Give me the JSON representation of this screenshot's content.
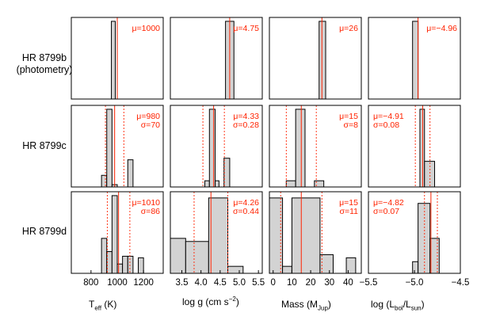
{
  "figure": {
    "row_labels": [
      [
        "HR 8799b",
        "(photometry)"
      ],
      [
        "HR 8799c"
      ],
      [
        "HR 8799d"
      ]
    ],
    "column_labels": [
      {
        "pre": "T",
        "sub": "eff",
        "post": " (K)"
      },
      {
        "pre": "log g (cm s",
        "sup": "−2",
        "post": ")"
      },
      {
        "pre": "Mass (M",
        "sub": "Jup",
        "post": ")"
      },
      {
        "pre": "log (L",
        "sub": "bol",
        "mid": "/L",
        "sub2": "sun",
        "post": ")"
      }
    ]
  },
  "colors": {
    "hist_fill": "#d3d3d3",
    "marker": "#ff2200",
    "axis": "#000000"
  },
  "chart_data": [
    {
      "type": "bar",
      "panel": "HR 8799b Teff",
      "xlim": [
        650,
        1350
      ],
      "ylim": [
        0,
        1.05
      ],
      "bins": [
        {
          "x0": 955,
          "x1": 985,
          "h": 1.0
        }
      ],
      "mean": 1000,
      "sigma_lines": [],
      "stats": [
        "μ=1000"
      ],
      "tick_values": [
        800,
        1000,
        1200
      ],
      "tick_labels": [
        "800",
        "1000",
        "1200"
      ]
    },
    {
      "type": "bar",
      "panel": "HR 8799b log g",
      "xlim": [
        3.2,
        5.6
      ],
      "ylim": [
        0,
        1.05
      ],
      "bins": [
        {
          "x0": 4.64,
          "x1": 4.86,
          "h": 1.0
        }
      ],
      "mean": 4.75,
      "sigma_lines": [],
      "stats": [
        "μ=4.75"
      ],
      "tick_values": [
        3.5,
        4.0,
        4.5,
        5.0,
        5.5
      ],
      "tick_labels": [
        "3.5",
        "4.0",
        "4.5",
        "5.0",
        "5.5"
      ]
    },
    {
      "type": "bar",
      "panel": "HR 8799b Mass",
      "xlim": [
        -2,
        47
      ],
      "ylim": [
        0,
        1.05
      ],
      "bins": [
        {
          "x0": 24.5,
          "x1": 28,
          "h": 1.0
        }
      ],
      "mean": 26,
      "sigma_lines": [],
      "stats": [
        "μ=26"
      ],
      "tick_values": [
        0,
        10,
        20,
        30,
        40
      ],
      "tick_labels": [
        "0",
        "10",
        "20",
        "30",
        "40"
      ]
    },
    {
      "type": "bar",
      "panel": "HR 8799b log L",
      "xlim": [
        -5.5,
        -4.5
      ],
      "ylim": [
        0,
        1.05
      ],
      "bins": [
        {
          "x0": -5.02,
          "x1": -4.96,
          "h": 1.0
        }
      ],
      "mean": -4.96,
      "sigma_lines": [],
      "stats": [
        "μ=−4.96"
      ],
      "tick_values": [
        -5.5,
        -5.0,
        -4.5
      ],
      "tick_labels": [
        "−5.5",
        "−5.0",
        "−4.5"
      ]
    },
    {
      "type": "bar",
      "panel": "HR 8799c Teff",
      "xlim": [
        650,
        1350
      ],
      "ylim": [
        0,
        1.05
      ],
      "bins": [
        {
          "x0": 880,
          "x1": 920,
          "h": 0.15
        },
        {
          "x0": 920,
          "x1": 960,
          "h": 1.0
        },
        {
          "x0": 960,
          "x1": 1000,
          "h": 0.03
        },
        {
          "x0": 1080,
          "x1": 1120,
          "h": 0.35
        }
      ],
      "mean": 980,
      "sigma_lines": [
        910,
        1050
      ],
      "stats": [
        "μ=980",
        "σ=70"
      ],
      "tick_values": [
        800,
        1000,
        1200
      ],
      "tick_labels": [
        "800",
        "1000",
        "1200"
      ]
    },
    {
      "type": "bar",
      "panel": "HR 8799c log g",
      "xlim": [
        3.2,
        5.6
      ],
      "ylim": [
        0,
        1.05
      ],
      "bins": [
        {
          "x0": 4.1,
          "x1": 4.22,
          "h": 0.08
        },
        {
          "x0": 4.22,
          "x1": 4.37,
          "h": 1.0
        },
        {
          "x0": 4.37,
          "x1": 4.47,
          "h": 0.08
        },
        {
          "x0": 4.6,
          "x1": 4.75,
          "h": 0.37
        }
      ],
      "mean": 4.33,
      "sigma_lines": [
        4.05,
        4.61
      ],
      "stats": [
        "μ=4.33",
        "σ=0.28"
      ],
      "tick_values": [
        3.5,
        4.0,
        4.5,
        5.0,
        5.5
      ],
      "tick_labels": [
        "3.5",
        "4.0",
        "4.5",
        "5.0",
        "5.5"
      ]
    },
    {
      "type": "bar",
      "panel": "HR 8799c Mass",
      "xlim": [
        -2,
        47
      ],
      "ylim": [
        0,
        1.05
      ],
      "bins": [
        {
          "x0": 7,
          "x1": 12,
          "h": 0.08
        },
        {
          "x0": 12,
          "x1": 17,
          "h": 1.0
        },
        {
          "x0": 22,
          "x1": 27,
          "h": 0.08
        }
      ],
      "mean": 15,
      "sigma_lines": [
        7,
        23
      ],
      "stats": [
        "μ=15",
        "σ=8"
      ],
      "tick_values": [
        0,
        10,
        20,
        30,
        40
      ],
      "tick_labels": [
        "0",
        "10",
        "20",
        "30",
        "40"
      ]
    },
    {
      "type": "bar",
      "panel": "HR 8799c log L",
      "xlim": [
        -5.5,
        -4.5
      ],
      "ylim": [
        0,
        1.05
      ],
      "bins": [
        {
          "x0": -4.94,
          "x1": -4.89,
          "h": 1.0
        },
        {
          "x0": -4.89,
          "x1": -4.78,
          "h": 0.33
        }
      ],
      "mean": -4.91,
      "sigma_lines": [
        -4.99,
        -4.83
      ],
      "stats": [
        "μ=−4.91",
        "σ=0.08"
      ],
      "tick_values": [
        -5.5,
        -5.0,
        -4.5
      ],
      "tick_labels": [
        "−5.5",
        "−5.0",
        "−4.5"
      ]
    },
    {
      "type": "bar",
      "panel": "HR 8799d Teff",
      "xlim": [
        650,
        1350
      ],
      "ylim": [
        0,
        1.05
      ],
      "bins": [
        {
          "x0": 880,
          "x1": 920,
          "h": 0.45
        },
        {
          "x0": 920,
          "x1": 960,
          "h": 0.28
        },
        {
          "x0": 960,
          "x1": 1000,
          "h": 1.0
        },
        {
          "x0": 1000,
          "x1": 1040,
          "h": 0.12
        },
        {
          "x0": 1040,
          "x1": 1080,
          "h": 0.22
        },
        {
          "x0": 1080,
          "x1": 1120,
          "h": 0.22
        },
        {
          "x0": 1160,
          "x1": 1200,
          "h": 0.2
        }
      ],
      "mean": 1010,
      "sigma_lines": [
        924,
        1096
      ],
      "stats": [
        "μ=1010",
        "σ=86"
      ],
      "tick_values": [
        800,
        1000,
        1200
      ],
      "tick_labels": [
        "800",
        "1000",
        "1200"
      ]
    },
    {
      "type": "bar",
      "panel": "HR 8799d log g",
      "xlim": [
        3.2,
        5.6
      ],
      "ylim": [
        0,
        1.05
      ],
      "bins": [
        {
          "x0": 3.2,
          "x1": 3.6,
          "h": 0.45
        },
        {
          "x0": 3.6,
          "x1": 4.2,
          "h": 0.41
        },
        {
          "x0": 4.2,
          "x1": 4.7,
          "h": 0.97
        },
        {
          "x0": 4.7,
          "x1": 5.1,
          "h": 0.09
        }
      ],
      "mean": 4.26,
      "sigma_lines": [
        3.82,
        4.7
      ],
      "stats": [
        "μ=4.26",
        "σ=0.44"
      ],
      "tick_values": [
        3.5,
        4.0,
        4.5,
        5.0,
        5.5
      ],
      "tick_labels": [
        "3.5",
        "4.0",
        "4.5",
        "5.0",
        "5.5"
      ]
    },
    {
      "type": "bar",
      "panel": "HR 8799d Mass",
      "xlim": [
        -2,
        47
      ],
      "ylim": [
        0,
        1.05
      ],
      "bins": [
        {
          "x0": -2,
          "x1": 5,
          "h": 0.97
        },
        {
          "x0": 5,
          "x1": 10,
          "h": 0.09
        },
        {
          "x0": 10,
          "x1": 25,
          "h": 0.97
        },
        {
          "x0": 25,
          "x1": 32,
          "h": 0.24
        },
        {
          "x0": 39,
          "x1": 44,
          "h": 0.2
        }
      ],
      "mean": 15,
      "sigma_lines": [
        4,
        26
      ],
      "stats": [
        "μ=15",
        "σ=11"
      ],
      "tick_values": [
        0,
        10,
        20,
        30,
        40
      ],
      "tick_labels": [
        "0",
        "10",
        "20",
        "30",
        "40"
      ]
    },
    {
      "type": "bar",
      "panel": "HR 8799d log L",
      "xlim": [
        -5.5,
        -4.5
      ],
      "ylim": [
        0,
        1.05
      ],
      "bins": [
        {
          "x0": -5.02,
          "x1": -4.96,
          "h": 0.15
        },
        {
          "x0": -4.96,
          "x1": -4.83,
          "h": 0.9
        },
        {
          "x0": -4.83,
          "x1": -4.73,
          "h": 0.45
        }
      ],
      "mean": -4.82,
      "sigma_lines": [
        -4.89,
        -4.75
      ],
      "stats": [
        "μ=−4.82",
        "σ=0.07"
      ],
      "tick_values": [
        -5.5,
        -5.0,
        -4.5
      ],
      "tick_labels": [
        "−5.5",
        "−5.0",
        "−4.5"
      ]
    }
  ]
}
